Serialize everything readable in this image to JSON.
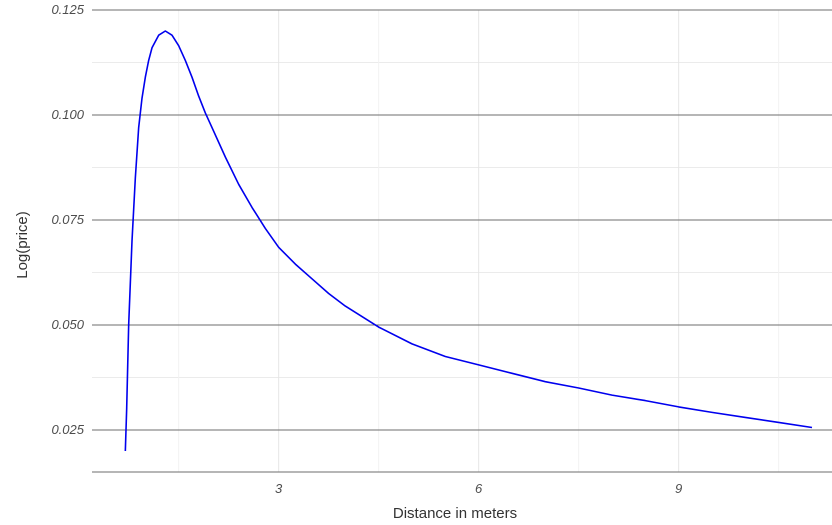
{
  "chart_data": {
    "type": "line",
    "title": "",
    "xlabel": "Distance in meters",
    "ylabel": "Log(price)",
    "xlim": [
      0.2,
      11.3
    ],
    "ylim": [
      0.015,
      0.125
    ],
    "x_ticks": [
      3,
      6,
      9
    ],
    "x_tick_labels": [
      "3",
      "6",
      "9"
    ],
    "y_ticks": [
      0.025,
      0.05,
      0.075,
      0.1,
      0.125
    ],
    "y_tick_labels": [
      "0.025",
      "0.050",
      "0.075",
      "0.100",
      "0.125"
    ],
    "grid": true,
    "legend": "none",
    "line_color": "#0000ee",
    "series": [
      {
        "x": [
          0.7,
          0.72,
          0.75,
          0.8,
          0.85,
          0.9,
          0.95,
          1.0,
          1.05,
          1.1,
          1.2,
          1.3,
          1.4,
          1.5,
          1.6,
          1.7,
          1.8,
          1.9,
          2.0,
          2.2,
          2.4,
          2.6,
          2.8,
          3.0,
          3.25,
          3.5,
          3.75,
          4.0,
          4.5,
          5.0,
          5.5,
          6.0,
          6.5,
          7.0,
          7.5,
          8.0,
          8.5,
          9.0,
          9.5,
          10.0,
          10.5,
          11.0
        ],
        "y": [
          0.02,
          0.03,
          0.05,
          0.07,
          0.085,
          0.097,
          0.104,
          0.109,
          0.113,
          0.116,
          0.119,
          0.12,
          0.119,
          0.1165,
          0.113,
          0.109,
          0.1045,
          0.1005,
          0.097,
          0.09,
          0.0835,
          0.078,
          0.073,
          0.0685,
          0.0645,
          0.061,
          0.0575,
          0.0545,
          0.0495,
          0.0455,
          0.0425,
          0.0405,
          0.0385,
          0.0365,
          0.035,
          0.0333,
          0.032,
          0.0305,
          0.0292,
          0.028,
          0.0268,
          0.0256
        ]
      }
    ]
  }
}
